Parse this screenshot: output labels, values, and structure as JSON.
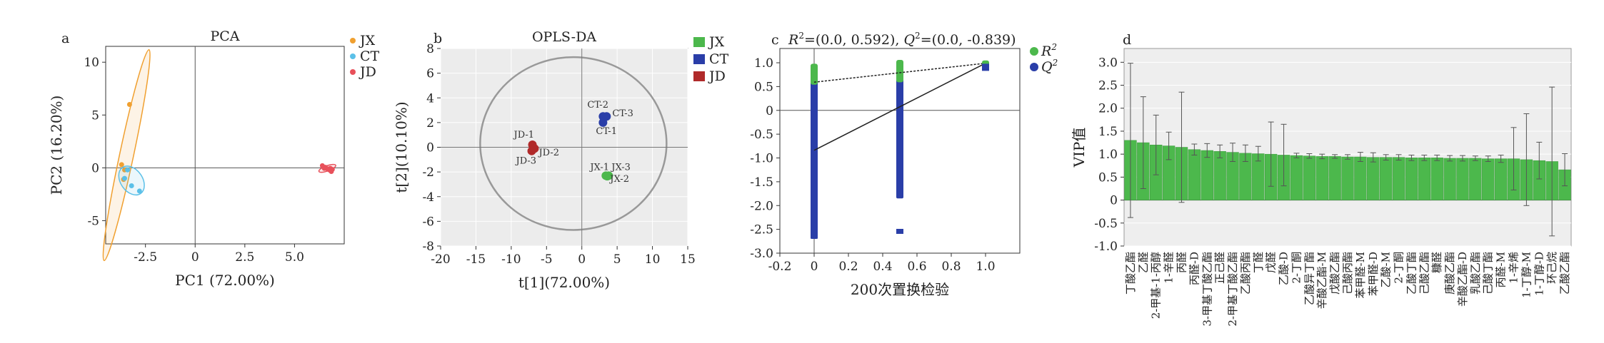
{
  "figure_title": "",
  "colors": {
    "JX_pca": "#f0a030",
    "CT_pca": "#5bc0e8",
    "JD_pca": "#e8505a",
    "JX_opls": "#4cb84c",
    "CT_opls": "#2a3ea8",
    "JD_opls": "#b02a2a",
    "R2": "#4cb84c",
    "Q2": "#2a3ea8",
    "vip_bar": "#4cb84c"
  },
  "chart_data": [
    {
      "id": "a",
      "letter": "a",
      "type": "scatter",
      "title": "PCA",
      "xlabel": "PC1 (72.00%)",
      "ylabel": "PC2 (16.20%)",
      "xlim": [
        -4.5,
        7.5
      ],
      "ylim": [
        -7.2,
        11.5
      ],
      "xticks": [
        -2.5,
        0,
        2.5,
        5.0
      ],
      "yticks": [
        -5,
        0,
        5,
        10
      ],
      "tick_labels_x": [
        "-2.5",
        "0",
        "2.5",
        "5.0"
      ],
      "tick_labels_y": [
        "-5",
        "0",
        "5",
        "10"
      ],
      "legend_position": "top-right",
      "legend": [
        "JX",
        "CT",
        "JD"
      ],
      "series": [
        {
          "name": "JX",
          "color": "#f0a030",
          "points": [
            [
              -3.3,
              6.0
            ],
            [
              -3.55,
              -0.2
            ],
            [
              -3.6,
              -1.1
            ],
            [
              -3.7,
              0.3
            ]
          ],
          "ellipse": {
            "cx": -3.45,
            "cy": 1.2,
            "rx": 0.35,
            "ry": 10.2,
            "angle": 12
          }
        },
        {
          "name": "CT",
          "color": "#5bc0e8",
          "points": [
            [
              -3.4,
              -0.2
            ],
            [
              -3.2,
              -1.7
            ],
            [
              -2.8,
              -2.2
            ],
            [
              -3.55,
              -1.0
            ]
          ],
          "ellipse": {
            "cx": -3.2,
            "cy": -1.2,
            "rx": 0.55,
            "ry": 1.5,
            "angle": -35
          }
        },
        {
          "name": "JD",
          "color": "#e8505a",
          "points": [
            [
              6.4,
              0.2
            ],
            [
              6.55,
              0.05
            ],
            [
              6.65,
              -0.1
            ],
            [
              6.75,
              -0.2
            ],
            [
              6.85,
              -0.35
            ],
            [
              6.9,
              -0.15
            ],
            [
              6.5,
              -0.05
            ],
            [
              6.8,
              -0.05
            ]
          ],
          "ellipse": {
            "cx": 6.65,
            "cy": -0.05,
            "rx": 0.45,
            "ry": 0.25,
            "angle": -20
          }
        }
      ]
    },
    {
      "id": "b",
      "letter": "b",
      "type": "scatter",
      "title": "OPLS-DA",
      "xlabel": "t[1](72.00%)",
      "ylabel": "t[2](10.10%)",
      "xlim": [
        -20,
        15
      ],
      "ylim": [
        -8,
        8
      ],
      "xticks": [
        -20,
        -15,
        -10,
        -5,
        0,
        5,
        10,
        15
      ],
      "yticks": [
        -8,
        -6,
        -4,
        -2,
        0,
        2,
        4,
        6,
        8
      ],
      "tick_labels_x": [
        "-20",
        "-15",
        "-10",
        "-5",
        "0",
        "5",
        "10",
        "15"
      ],
      "tick_labels_y": [
        "-8",
        "-6",
        "-4",
        "-2",
        "0",
        "2",
        "4",
        "6",
        "8"
      ],
      "legend_position": "top-right",
      "legend": [
        "JX",
        "CT",
        "JD"
      ],
      "ellipse": {
        "cx": -1.2,
        "cy": 0.3,
        "rx": 13.2,
        "ry": 7.0
      },
      "series": [
        {
          "name": "JX",
          "color": "#4cb84c",
          "points": [
            {
              "x": 3.4,
              "y": -2.3,
              "label": "JX-1"
            },
            {
              "x": 3.8,
              "y": -2.3,
              "label": "JX-3"
            },
            {
              "x": 3.6,
              "y": -2.35,
              "label": "JX-2"
            }
          ]
        },
        {
          "name": "CT",
          "color": "#2a3ea8",
          "points": [
            {
              "x": 3.0,
              "y": 2.5,
              "label": "CT-2"
            },
            {
              "x": 3.5,
              "y": 2.5,
              "label": "CT-3"
            },
            {
              "x": 3.0,
              "y": 2.0,
              "label": "CT-1"
            }
          ]
        },
        {
          "name": "JD",
          "color": "#b02a2a",
          "points": [
            {
              "x": -7.0,
              "y": 0.2,
              "label": "JD-1"
            },
            {
              "x": -6.7,
              "y": -0.1,
              "label": "JD-2"
            },
            {
              "x": -7.1,
              "y": -0.3,
              "label": "JD-3"
            }
          ]
        }
      ]
    },
    {
      "id": "c",
      "letter": "c",
      "type": "scatter",
      "title_r": "R",
      "title_sup": "2",
      "title_r_vals": "=(0.0, 0.592), ",
      "title_q": "Q",
      "title_q_vals": "=(0.0, -0.839)",
      "xlabel": "200次置换检验",
      "ylabel": "",
      "xlim": [
        -0.2,
        1.2
      ],
      "ylim": [
        -3.0,
        1.3
      ],
      "xticks": [
        -0.2,
        0,
        0.2,
        0.4,
        0.6,
        0.8,
        1.0
      ],
      "yticks": [
        -3.0,
        -2.5,
        -2.0,
        -1.5,
        -1.0,
        -0.5,
        0,
        0.5,
        1.0
      ],
      "tick_labels_x": [
        "-0.2",
        "0",
        "0.2",
        "0.4",
        "0.6",
        "0.8",
        "1.0"
      ],
      "tick_labels_y": [
        "-3.0",
        "-2.5",
        "-2.0",
        "-1.5",
        "-1.0",
        "-0.5",
        "0",
        "0.5",
        "1.0"
      ],
      "legend_position": "top-right",
      "legend": [
        "R",
        "Q"
      ],
      "legend_sup": "2",
      "intercepts": {
        "R2": 0.592,
        "Q2": -0.839
      },
      "original": {
        "x": 1.0,
        "R2": 0.99,
        "Q2": 0.92
      },
      "series": [
        {
          "name": "R2",
          "color": "#4cb84c",
          "columns": [
            {
              "x": 0.0,
              "y": [
                0.92,
                0.9,
                0.88,
                0.85,
                0.82,
                0.8,
                0.78,
                0.75,
                0.72,
                0.7,
                0.65,
                0.6
              ]
            },
            {
              "x": 0.5,
              "y": [
                1.0,
                0.98,
                0.95,
                0.9,
                0.86,
                0.82,
                0.78,
                0.74,
                0.7,
                0.65
              ]
            }
          ]
        },
        {
          "name": "Q2",
          "color": "#2a3ea8",
          "columns": [
            {
              "x": 0.0,
              "y_from": -2.7,
              "y_to": 0.9,
              "extra": [
                -2.1,
                -2.3,
                -2.5,
                -2.65
              ]
            },
            {
              "x": 0.5,
              "y_from": -1.85,
              "y_to": 1.0,
              "extra": [
                -2.55
              ]
            }
          ]
        }
      ]
    },
    {
      "id": "d",
      "letter": "d",
      "type": "bar",
      "ylabel": "VIP值",
      "ylim": [
        -1.0,
        3.3
      ],
      "yticks": [
        -1.0,
        -0.5,
        0,
        0.5,
        1.0,
        1.5,
        2.0,
        2.5,
        3.0
      ],
      "tick_labels_y": [
        "-1.0",
        "-0.5",
        "0",
        "0.5",
        "1.0",
        "1.5",
        "2.0",
        "2.5",
        "3.0"
      ],
      "categories": [
        "丁酸乙酯",
        "乙醛",
        "2-甲基-1-丙醇",
        "1-辛醛",
        "丙醛",
        "丙醛-D",
        "3-甲基丁酸乙酯",
        "正己醛",
        "2-甲基丁酸乙酯",
        "乙酸丙酯",
        "丁醛",
        "戊醛",
        "乙酸-D",
        "2-丁酮",
        "乙酸异丁酯",
        "辛酸乙酯-M",
        "戊酸乙酯",
        "己酸丙酯",
        "苯甲醛-M",
        "苯甲醛-D",
        "乙酸-M",
        "2-丁酮",
        "乙酸丁酯",
        "己酸乙酯",
        "糠醛",
        "庚酸乙酯",
        "辛酸乙酯-D",
        "乳酸乙酯",
        "己酸丁酯",
        "丙醛-M",
        "1-辛烯",
        "1-丁醇-M",
        "1-丁醇-D",
        "环己烷",
        "乙酸乙酯"
      ],
      "values": [
        1.3,
        1.25,
        1.2,
        1.18,
        1.15,
        1.1,
        1.08,
        1.06,
        1.04,
        1.02,
        1.01,
        1.0,
        0.98,
        0.97,
        0.96,
        0.95,
        0.95,
        0.94,
        0.94,
        0.93,
        0.93,
        0.93,
        0.92,
        0.92,
        0.92,
        0.91,
        0.91,
        0.91,
        0.9,
        0.9,
        0.9,
        0.88,
        0.86,
        0.84,
        0.66
      ],
      "errors": [
        1.68,
        1.0,
        0.65,
        0.3,
        1.2,
        0.12,
        0.15,
        0.14,
        0.2,
        0.18,
        0.16,
        0.7,
        0.67,
        0.05,
        0.05,
        0.05,
        0.04,
        0.05,
        0.1,
        0.1,
        0.06,
        0.06,
        0.06,
        0.06,
        0.06,
        0.06,
        0.06,
        0.05,
        0.06,
        0.08,
        0.68,
        1.0,
        0.4,
        1.62,
        0.35
      ]
    }
  ]
}
